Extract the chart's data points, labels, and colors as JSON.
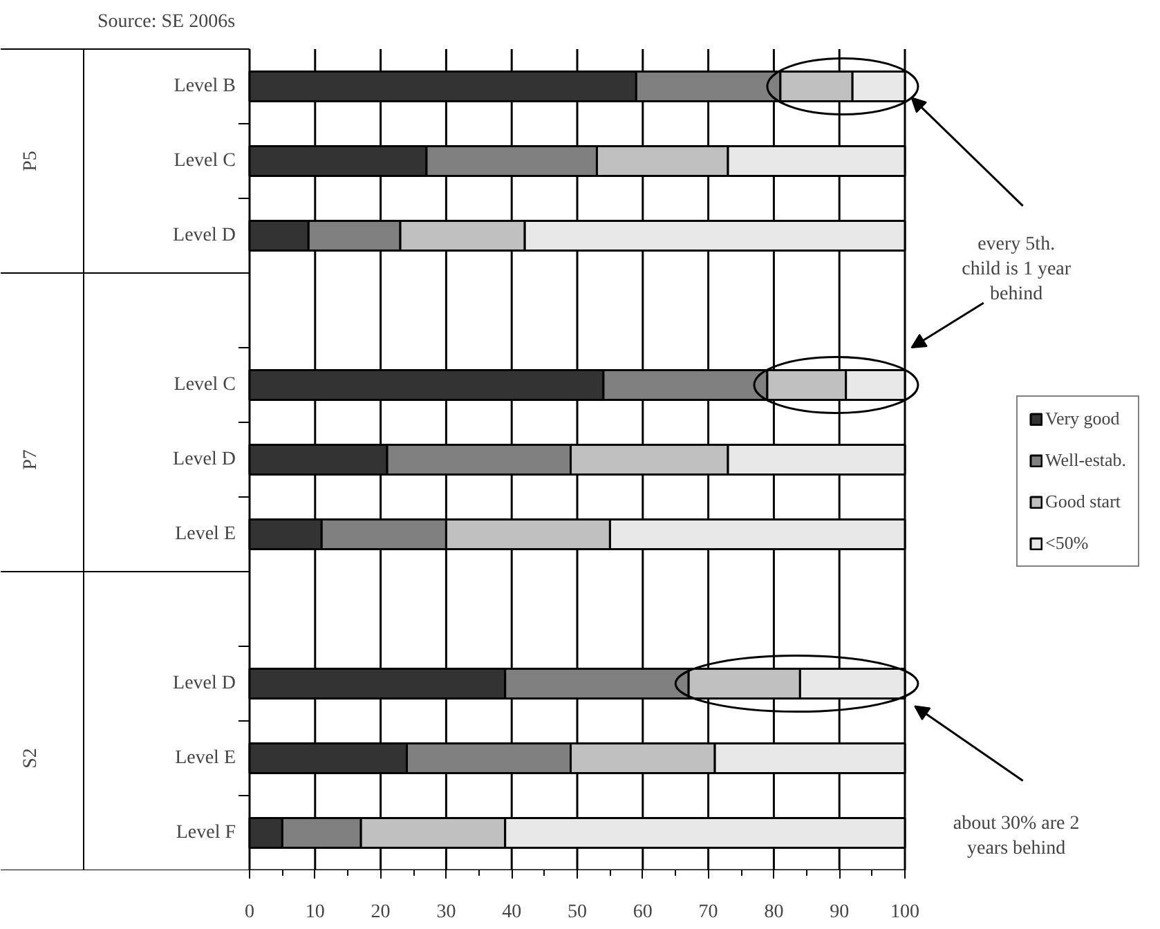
{
  "chart_data": {
    "type": "bar",
    "orientation": "horizontal",
    "stacked": true,
    "categories": [
      "Level B",
      "Level C",
      "Level D",
      null,
      "Level C",
      "Level D",
      "Level E",
      null,
      "Level D",
      "Level E",
      "Level F"
    ],
    "series": [
      {
        "name": "Very good",
        "color": "#333333",
        "values": [
          59,
          27,
          9,
          null,
          54,
          21,
          11,
          null,
          39,
          24,
          5
        ]
      },
      {
        "name": "Well-estab.",
        "color": "#808080",
        "values": [
          22,
          26,
          14,
          null,
          25,
          28,
          19,
          null,
          28,
          25,
          12
        ]
      },
      {
        "name": "Good start",
        "color": "#c0c0c0",
        "values": [
          11,
          20,
          19,
          null,
          12,
          24,
          25,
          null,
          17,
          22,
          22
        ]
      },
      {
        "name": "<50%",
        "color": "#e8e8e8",
        "values": [
          8,
          27,
          58,
          null,
          9,
          27,
          45,
          null,
          16,
          29,
          61
        ]
      }
    ],
    "xlim": [
      0,
      100
    ],
    "xticks": [
      0,
      10,
      20,
      30,
      40,
      50,
      60,
      70,
      80,
      90,
      100
    ],
    "grid": "x",
    "legend": "right",
    "annotations": [
      "Source: SE 2006s",
      "P5",
      "P7",
      "S2",
      "every 5th.\nchild is 1 year\nbehind",
      "about 30% are 2\nyears behind"
    ]
  }
}
